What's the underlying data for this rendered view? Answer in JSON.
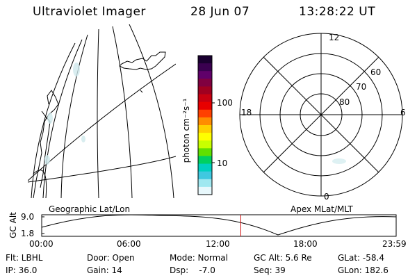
{
  "header": {
    "instrument": "Ultraviolet Imager",
    "date": "28 Jun 07",
    "time": "13:28:22 UT"
  },
  "colorbar": {
    "unit_label": "photon cm⁻²s⁻¹",
    "tick_labels": [
      "100",
      "10"
    ],
    "colors": [
      "#1a0030",
      "#3a0050",
      "#60006a",
      "#800040",
      "#a00020",
      "#c80010",
      "#e80000",
      "#ff4000",
      "#ff8c00",
      "#ffd000",
      "#ffff00",
      "#c8ff00",
      "#60e000",
      "#00d060",
      "#00d0c0",
      "#40c8e0",
      "#a0e8f0",
      "#e8f8fc"
    ]
  },
  "polar_map": {
    "clock_labels": [
      "12",
      "18",
      "6",
      "0"
    ],
    "latitude_labels": [
      "60",
      "70",
      "80"
    ]
  },
  "timeline": {
    "left_title": "Geographic Lat/Lon",
    "right_title": "Apex MLat/MLT",
    "y_axis_label": "GC Alt",
    "y_ticks": [
      "9.0",
      "1.8"
    ],
    "x_ticks": [
      "00:00",
      "06:00",
      "12:00",
      "18:00",
      "23:59"
    ],
    "current_time_fraction": 0.5618
  },
  "info": {
    "filter": "Flt: LBHL",
    "door": "Door: Open",
    "mode": "Mode: Normal",
    "gc_alt": "GC Alt: 5.6 Re",
    "glat": "GLat: -58.4",
    "ip": "IP: 36.0",
    "gain": "Gain: 14",
    "dsp": "Dsp:    -7.0",
    "seq": "Seq: 39",
    "glon": "GLon: 182.6"
  }
}
